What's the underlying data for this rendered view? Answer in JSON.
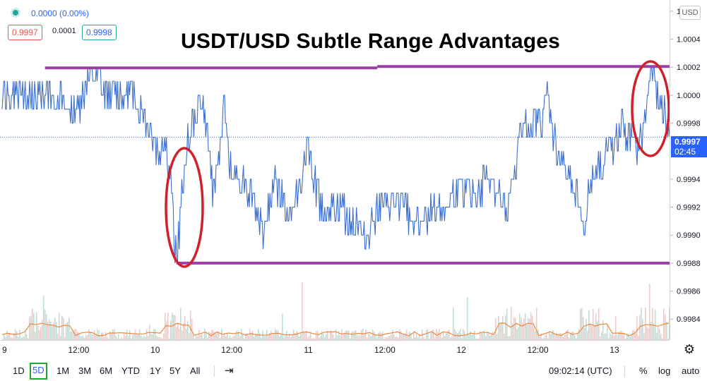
{
  "header": {
    "change_text": "0.0000 (0.00%)",
    "bid": "0.9997",
    "spread": "0.0001",
    "ask": "0.9998",
    "currency": "USD"
  },
  "title": "USDT/USD Subtle Range Advantages",
  "last_price": {
    "value": "0.9997",
    "countdown": "02:45"
  },
  "toolbar": {
    "ranges": [
      "1D",
      "5D",
      "1M",
      "3M",
      "6M",
      "YTD",
      "1Y",
      "5Y",
      "All"
    ],
    "active_range": "5D",
    "clock": "09:02:14 (UTC)",
    "percent": "%",
    "log": "log",
    "auto": "auto"
  },
  "colors": {
    "price_line": "#3c6fce",
    "range_line": "#9c3fa8",
    "circle": "#d0202a",
    "tag": "#2962ff",
    "volume_ma": "#f0883c"
  },
  "chart_data": {
    "type": "line",
    "title": "USDT/USD Subtle Range Advantages",
    "x_ticks": [
      "9",
      "12:00",
      "10",
      "12:00",
      "11",
      "12:00",
      "12",
      "12:00",
      "13"
    ],
    "y_ticks": [
      0.9984,
      0.9986,
      0.9988,
      0.999,
      0.9992,
      0.9994,
      0.9996,
      0.9998,
      1.0,
      1.0002,
      1.0004,
      1.0006
    ],
    "ylim": [
      0.99825,
      1.00068
    ],
    "xlim": [
      0,
      4.36
    ],
    "series": [
      {
        "values_x": [
          0,
          0.28,
          0.5,
          0.55,
          0.75,
          0.86,
          0.96,
          1.02,
          1.06,
          1.1,
          1.14,
          1.2,
          1.3,
          1.34,
          1.38,
          1.45,
          1.5,
          1.56,
          1.64,
          1.7,
          1.78,
          1.88,
          2.0,
          2.08,
          2.18,
          2.3,
          2.38,
          2.46,
          2.6,
          2.7,
          2.86,
          3.0,
          3.08,
          3.2,
          3.3,
          3.38,
          3.44,
          3.52,
          3.56,
          3.62,
          3.7,
          3.76,
          3.8,
          3.84,
          3.9,
          3.98,
          4.04,
          4.14,
          4.2,
          4.24,
          4.28,
          4.32,
          4.36
        ],
        "values_y": [
          1.0,
          1.0,
          0.9999,
          1.0001,
          1.0,
          1.0,
          0.9998,
          0.9996,
          0.9997,
          0.9994,
          0.9988,
          0.9996,
          1.0,
          0.9997,
          0.9993,
          0.9999,
          0.9994,
          0.9994,
          0.9993,
          0.999,
          0.9994,
          0.9991,
          0.9996,
          0.9992,
          0.9992,
          0.9991,
          0.999,
          0.9992,
          0.9992,
          0.9991,
          0.9992,
          0.9993,
          0.9993,
          0.9994,
          0.9991,
          0.9997,
          0.9998,
          0.9998,
          1.0,
          0.9996,
          0.9994,
          0.9993,
          0.999,
          0.9994,
          0.9995,
          0.9996,
          0.9998,
          0.9996,
          0.9998,
          1.0002,
          1.0,
          0.9999,
          0.9997
        ]
      }
    ],
    "resistance": 1.0002,
    "support": 0.9988
  }
}
